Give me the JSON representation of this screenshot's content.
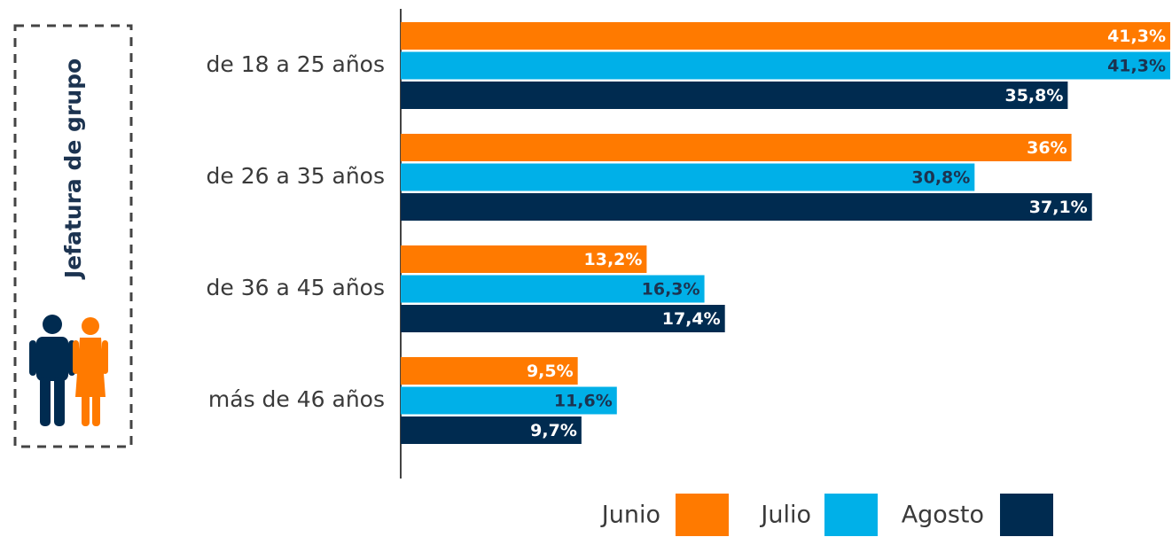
{
  "chart_data": {
    "type": "bar",
    "orientation": "horizontal",
    "title": "Jefatura de grupo",
    "categories": [
      "de 18 a 25 años",
      "de 26 a 35 años",
      "de 36 a 45 años",
      "más de 46 años"
    ],
    "series": [
      {
        "name": "Junio",
        "color": "#ff7a00",
        "label_color": "#ffffff",
        "values": [
          41.3,
          36,
          13.2,
          9.5
        ],
        "value_labels": [
          "41,3%",
          "36%",
          "13,2%",
          "9,5%"
        ]
      },
      {
        "name": "Julio",
        "color": "#00b0e8",
        "label_color": "#1c3350",
        "values": [
          41.3,
          30.8,
          16.3,
          11.6
        ],
        "value_labels": [
          "41,3%",
          "30,8%",
          "16,3%",
          "11,6%"
        ]
      },
      {
        "name": "Agosto",
        "color": "#002b50",
        "label_color": "#ffffff",
        "values": [
          35.8,
          37.1,
          17.4,
          9.7
        ],
        "value_labels": [
          "35,8%",
          "37,1%",
          "17,4%",
          "9,7%"
        ]
      }
    ],
    "xlim": [
      0,
      41.3
    ]
  }
}
